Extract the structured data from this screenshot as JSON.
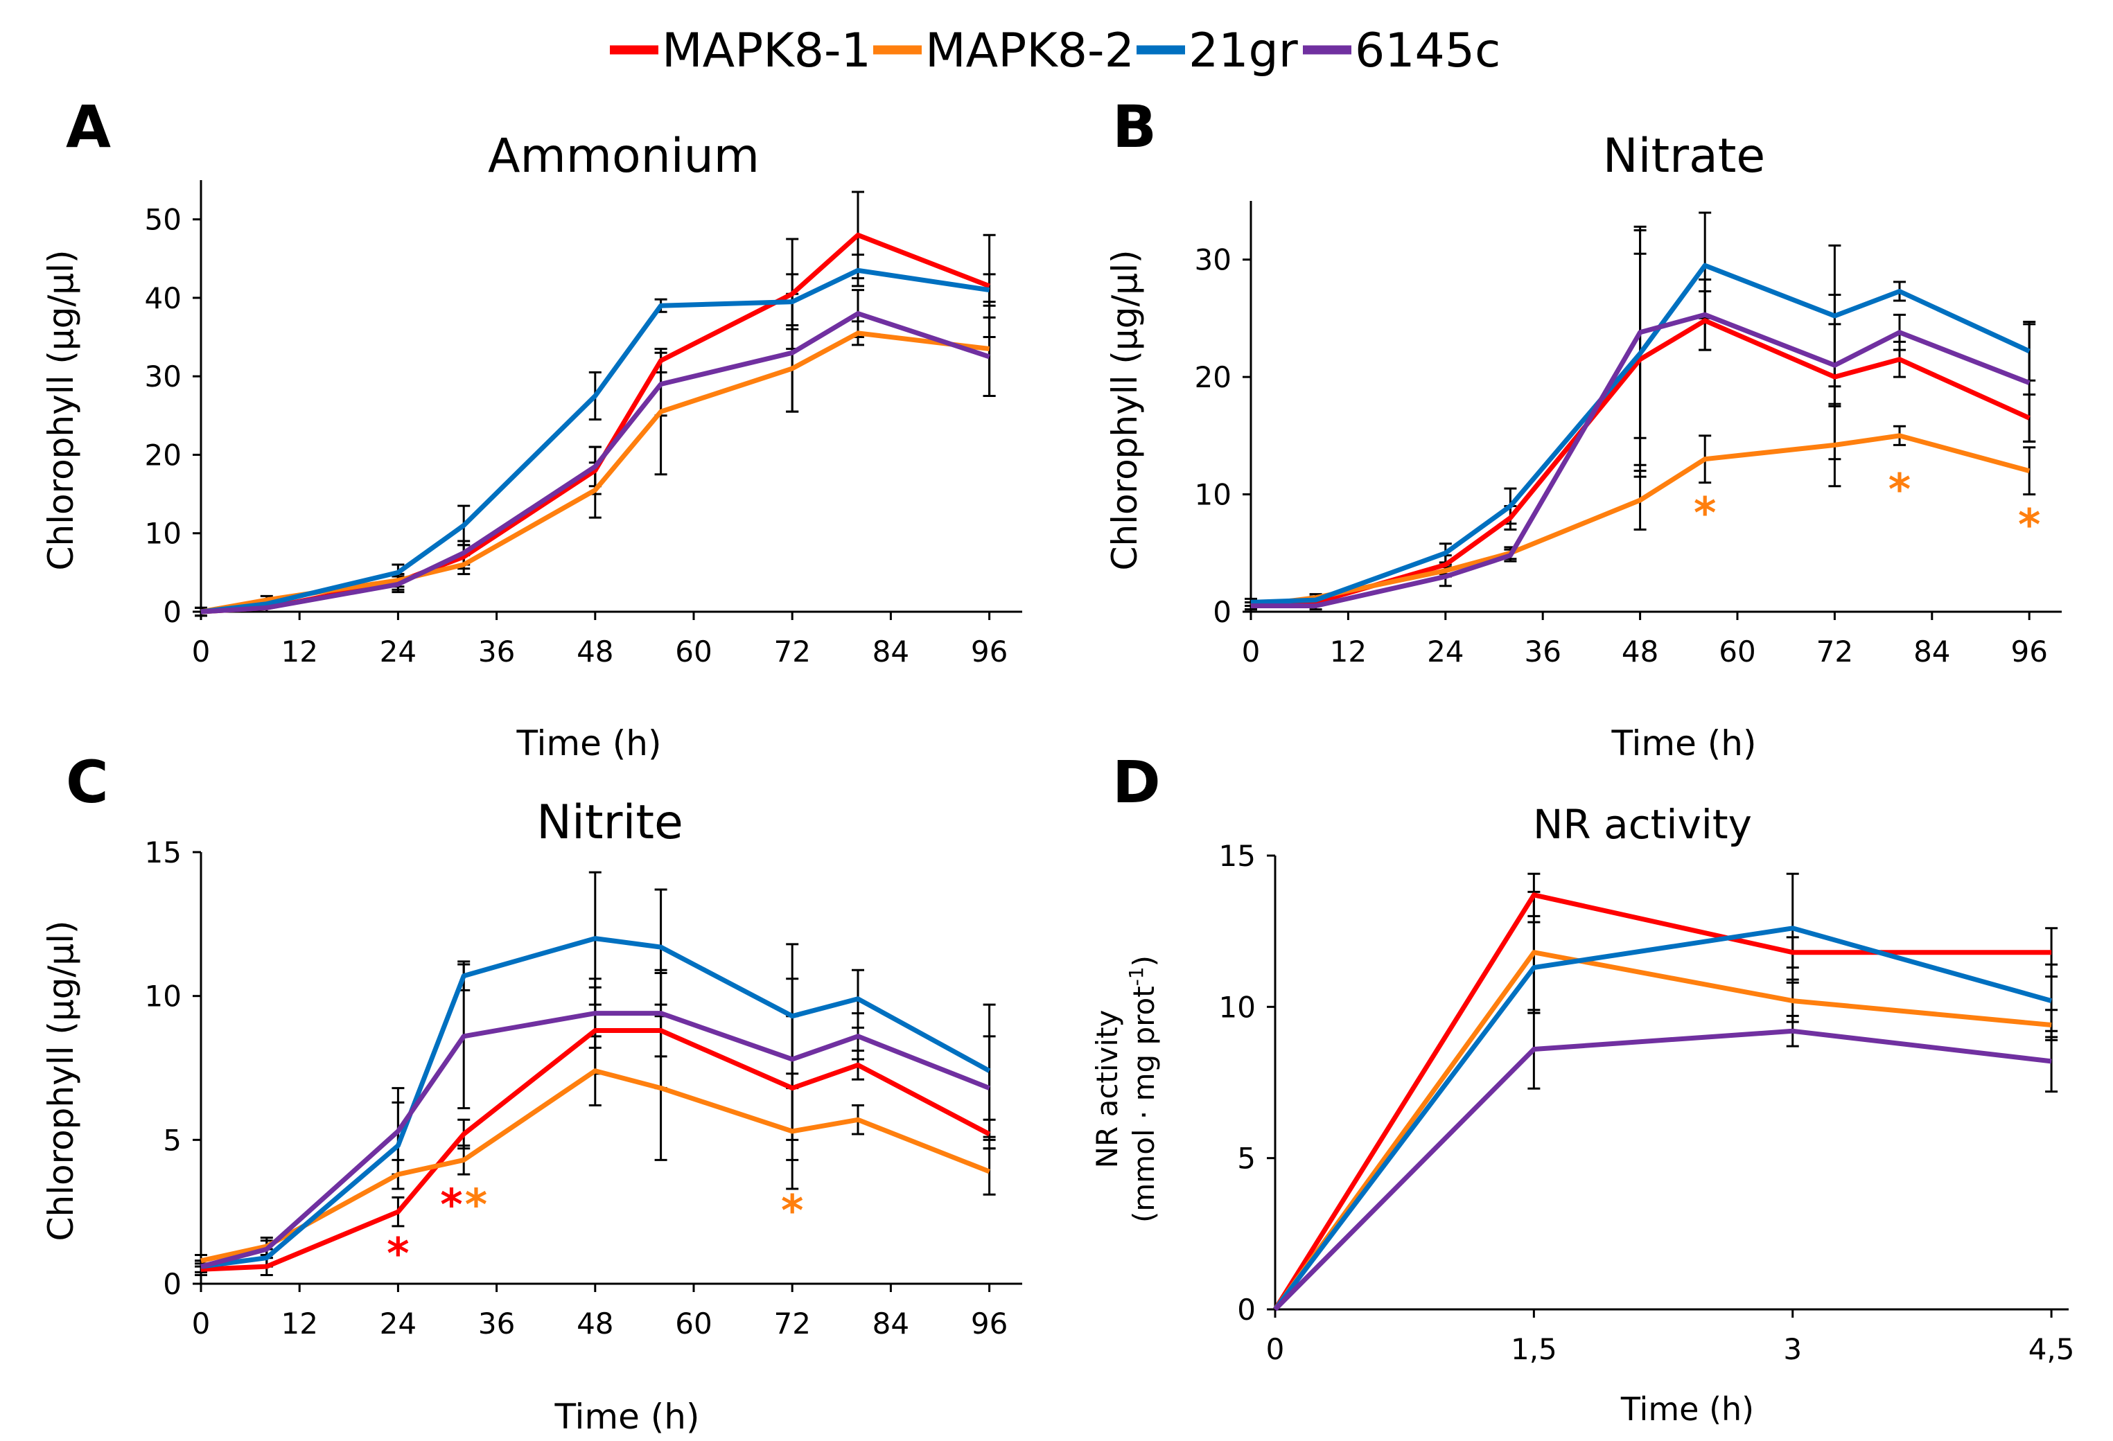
{
  "legend": {
    "entries": [
      {
        "name": "MAPK8-1",
        "color": "#ff0000"
      },
      {
        "name": "MAPK8-2",
        "color": "#ff7f0e"
      },
      {
        "name": "21gr",
        "color": "#0070c0"
      },
      {
        "name": "6145c",
        "color": "#7030a0"
      }
    ]
  },
  "chart_data": [
    {
      "panel": "A",
      "type": "line",
      "title": "Ammonium",
      "xlabel": "Time (h)",
      "ylabel": "Chlorophyll (µg/µl)",
      "x": [
        0,
        8,
        24,
        32,
        48,
        56,
        72,
        80,
        96
      ],
      "xticks": [
        0,
        12,
        24,
        36,
        48,
        60,
        72,
        84,
        96
      ],
      "xtick_labels": [
        "0",
        "12",
        "24",
        "36",
        "48",
        "60",
        "72",
        "84",
        "96"
      ],
      "xlim": [
        0,
        100
      ],
      "ylim": [
        0,
        55
      ],
      "yticks": [
        0,
        10,
        20,
        30,
        40,
        50
      ],
      "ytick_labels": [
        "0",
        "10",
        "20",
        "30",
        "40",
        "50"
      ],
      "series": [
        {
          "name": "MAPK8-1",
          "values": [
            0,
            0.5,
            3.8,
            7,
            18,
            32,
            40.5,
            48,
            41.5
          ],
          "errors": [
            0.5,
            0.5,
            1,
            1.5,
            3,
            1.5,
            7,
            5.5,
            6.5
          ]
        },
        {
          "name": "MAPK8-2",
          "values": [
            0,
            1.5,
            4,
            6,
            15.5,
            25.5,
            31,
            35.5,
            33.5
          ],
          "errors": [
            0.5,
            0.5,
            0.8,
            1.2,
            3.5,
            8,
            5.5,
            1.5,
            6
          ]
        },
        {
          "name": "21gr",
          "values": [
            0,
            1,
            5,
            11,
            27.5,
            39,
            39.5,
            43.5,
            41
          ],
          "errors": [
            0.5,
            0.5,
            1,
            2.5,
            3,
            0.8,
            3.5,
            2,
            2
          ]
        },
        {
          "name": "6145c",
          "values": [
            0,
            0.5,
            3.5,
            7.5,
            18.5,
            29,
            33,
            38,
            32.5
          ],
          "errors": [
            0.5,
            0.5,
            1,
            1.5,
            2.5,
            4,
            7.5,
            3,
            5
          ]
        }
      ],
      "annotations": []
    },
    {
      "panel": "B",
      "type": "line",
      "title": "Nitrate",
      "xlabel": "Time (h)",
      "ylabel": "Chlorophyll (µg/µl)",
      "x": [
        0,
        8,
        24,
        32,
        48,
        56,
        72,
        80,
        96
      ],
      "xticks": [
        0,
        12,
        24,
        36,
        48,
        60,
        72,
        84,
        96
      ],
      "xtick_labels": [
        "0",
        "12",
        "24",
        "36",
        "48",
        "60",
        "72",
        "84",
        "96"
      ],
      "xlim": [
        0,
        100
      ],
      "ylim": [
        0,
        35
      ],
      "yticks": [
        0,
        10,
        20,
        30
      ],
      "ytick_labels": [
        "0",
        "10",
        "20",
        "30"
      ],
      "series": [
        {
          "name": "MAPK8-1",
          "values": [
            0.5,
            0.8,
            4,
            8,
            21.5,
            24.8,
            20,
            21.5,
            16.5
          ],
          "errors": [
            0.3,
            0.3,
            0.8,
            1,
            9,
            2.5,
            7,
            1.5,
            2
          ]
        },
        {
          "name": "MAPK8-2",
          "values": [
            0.5,
            1.2,
            3.5,
            5,
            9.5,
            13,
            14.2,
            15,
            12
          ],
          "errors": [
            0.3,
            0.3,
            0.5,
            0.5,
            2.5,
            2,
            3.5,
            0.8,
            2
          ]
        },
        {
          "name": "21gr",
          "values": [
            0.8,
            1,
            5,
            9,
            22,
            29.5,
            25.2,
            27.3,
            22.2
          ],
          "errors": [
            0.3,
            0.3,
            0.8,
            1.5,
            10.5,
            4.5,
            6,
            0.8,
            2.5
          ]
        },
        {
          "name": "6145c",
          "values": [
            0.5,
            0.5,
            3,
            4.8,
            23.8,
            25.3,
            21,
            23.8,
            19.5
          ],
          "errors": [
            0.3,
            0.3,
            0.8,
            0.5,
            9,
            3,
            3.5,
            1.5,
            5
          ]
        }
      ],
      "annotations": [
        {
          "text": "*",
          "x": 56,
          "y": 8.8,
          "color": "#ff7f0e"
        },
        {
          "text": "*",
          "x": 80,
          "y": 10.8,
          "color": "#ff7f0e"
        },
        {
          "text": "*",
          "x": 96,
          "y": 7.8,
          "color": "#ff7f0e"
        }
      ]
    },
    {
      "panel": "C",
      "type": "line",
      "title": "Nitrite",
      "xlabel": "Time (h)",
      "ylabel": "Chlorophyll (µg/µl)",
      "x": [
        0,
        8,
        24,
        32,
        48,
        56,
        72,
        80,
        96
      ],
      "xticks": [
        0,
        12,
        24,
        36,
        48,
        60,
        72,
        84,
        96
      ],
      "xtick_labels": [
        "0",
        "12",
        "24",
        "36",
        "48",
        "60",
        "72",
        "84",
        "96"
      ],
      "xlim": [
        0,
        100
      ],
      "ylim": [
        0,
        15
      ],
      "yticks": [
        0,
        5,
        10,
        15
      ],
      "ytick_labels": [
        "0",
        "5",
        "10",
        "15"
      ],
      "series": [
        {
          "name": "MAPK8-1",
          "values": [
            0.5,
            0.6,
            2.5,
            5.2,
            8.8,
            8.8,
            6.8,
            7.6,
            5.2
          ],
          "errors": [
            0.2,
            0.3,
            0.5,
            0.5,
            1.5,
            2,
            2.5,
            0.5,
            0.5
          ]
        },
        {
          "name": "MAPK8-2",
          "values": [
            0.8,
            1.3,
            3.8,
            4.3,
            7.4,
            6.8,
            5.3,
            5.7,
            3.9
          ],
          "errors": [
            0.2,
            0.3,
            0.5,
            0.5,
            1.2,
            2.5,
            2,
            0.5,
            0.8
          ]
        },
        {
          "name": "21gr",
          "values": [
            0.6,
            0.9,
            4.8,
            10.7,
            12,
            11.7,
            9.3,
            9.9,
            7.4
          ],
          "errors": [
            0.2,
            0.3,
            1.5,
            0.5,
            2.3,
            2,
            2.5,
            1,
            2.3
          ]
        },
        {
          "name": "6145c",
          "values": [
            0.6,
            1.2,
            5.3,
            8.6,
            9.4,
            9.4,
            7.8,
            8.6,
            6.8
          ],
          "errors": [
            0.2,
            0.3,
            1.5,
            2.5,
            1.2,
            1.5,
            2.8,
            0.8,
            1.8
          ]
        }
      ],
      "annotations": [
        {
          "text": "*",
          "x": 24,
          "y": 1.2,
          "color": "#ff0000"
        },
        {
          "text": "*",
          "x": 30.5,
          "y": 2.9,
          "color": "#ff0000"
        },
        {
          "text": "*",
          "x": 33.5,
          "y": 2.9,
          "color": "#ff7f0e"
        },
        {
          "text": "*",
          "x": 72,
          "y": 2.7,
          "color": "#ff7f0e"
        }
      ]
    },
    {
      "panel": "D",
      "type": "line",
      "title": "NR activity",
      "xlabel": "Time (h)",
      "ylabel": "NR activity",
      "ylabel_line2": "(mmol · mg prot",
      "ylabel_sup": "-1",
      "ylabel_close": ")",
      "x": [
        0,
        1.5,
        3,
        4.5
      ],
      "xticks": [
        0,
        1.5,
        3,
        4.5
      ],
      "xtick_labels": [
        "0",
        "1,5",
        "3",
        "4,5"
      ],
      "xlim": [
        0,
        4.6
      ],
      "ylim": [
        0,
        15
      ],
      "yticks": [
        0,
        5,
        10,
        15
      ],
      "ytick_labels": [
        "0",
        "5",
        "10",
        "15"
      ],
      "series": [
        {
          "name": "MAPK8-1",
          "values": [
            0,
            13.7,
            11.8,
            11.8
          ],
          "errors": [
            0,
            0.7,
            0.5,
            0.8
          ]
        },
        {
          "name": "MAPK8-2",
          "values": [
            0,
            11.8,
            10.2,
            9.4
          ],
          "errors": [
            0,
            2,
            0.7,
            0.5
          ]
        },
        {
          "name": "21gr",
          "values": [
            0,
            11.3,
            12.6,
            10.2
          ],
          "errors": [
            0,
            1.5,
            1.8,
            1.2
          ]
        },
        {
          "name": "6145c",
          "values": [
            0,
            8.6,
            9.2,
            8.2
          ],
          "errors": [
            0,
            1.3,
            0.5,
            1
          ]
        }
      ],
      "annotations": []
    }
  ]
}
